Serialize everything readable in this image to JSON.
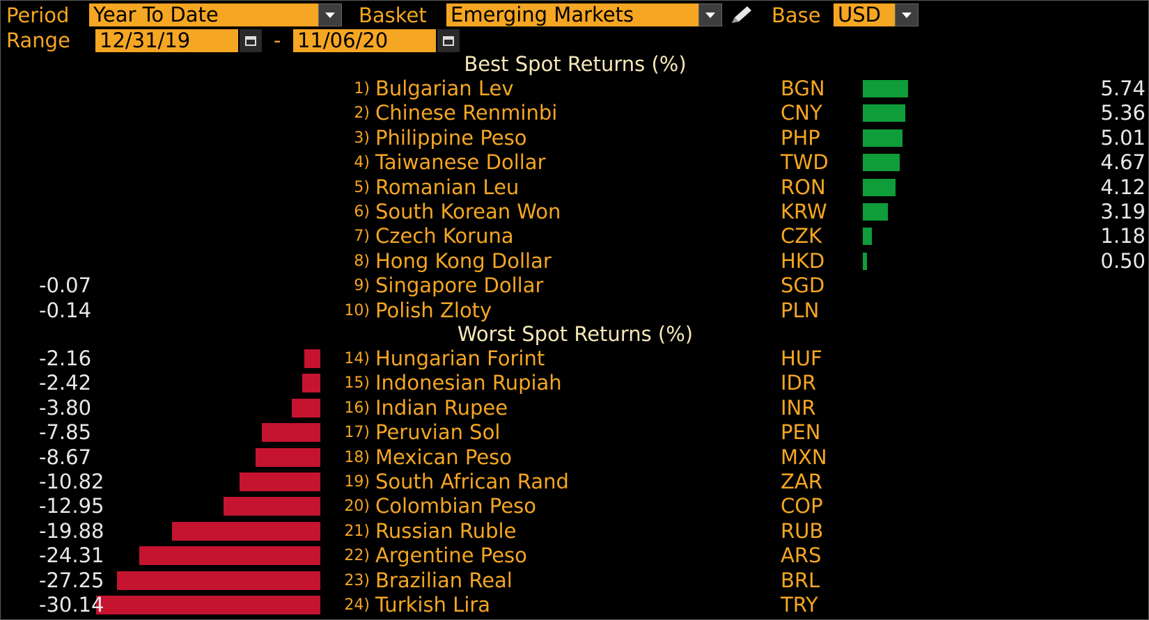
{
  "toolbar": {
    "period_label": "Period",
    "period_value": "Year To Date",
    "basket_label": "Basket",
    "basket_value": "Emerging Markets",
    "base_label": "Base",
    "base_value": "USD",
    "range_label": "Range",
    "range_start": "12/31/19",
    "range_sep": "-",
    "range_end": "11/06/20",
    "edit_icon": "pencil-icon",
    "calendar_icon": "calendar-icon"
  },
  "colors": {
    "accent": "#f5a623",
    "positive_bar": "#0f9d3a",
    "negative_bar": "#c4142f",
    "header_text": "#f5e8b8"
  },
  "best": {
    "title": "Best Spot Returns (%)",
    "rows": [
      {
        "rank": "1)",
        "name": "Bulgarian Lev",
        "code": "BGN",
        "value": "5.74"
      },
      {
        "rank": "2)",
        "name": "Chinese Renminbi",
        "code": "CNY",
        "value": "5.36"
      },
      {
        "rank": "3)",
        "name": "Philippine Peso",
        "code": "PHP",
        "value": "5.01"
      },
      {
        "rank": "4)",
        "name": "Taiwanese Dollar",
        "code": "TWD",
        "value": "4.67"
      },
      {
        "rank": "5)",
        "name": "Romanian Leu",
        "code": "RON",
        "value": "4.12"
      },
      {
        "rank": "6)",
        "name": "South Korean Won",
        "code": "KRW",
        "value": "3.19"
      },
      {
        "rank": "7)",
        "name": "Czech Koruna",
        "code": "CZK",
        "value": "1.18"
      },
      {
        "rank": "8)",
        "name": "Hong Kong Dollar",
        "code": "HKD",
        "value": "0.50"
      },
      {
        "rank": "9)",
        "name": "Singapore Dollar",
        "code": "SGD",
        "value": "-0.07"
      },
      {
        "rank": "10)",
        "name": "Polish Zloty",
        "code": "PLN",
        "value": "-0.14"
      }
    ]
  },
  "worst": {
    "title": "Worst Spot Returns (%)",
    "rows": [
      {
        "rank": "14)",
        "name": "Hungarian Forint",
        "code": "HUF",
        "value": "-2.16"
      },
      {
        "rank": "15)",
        "name": "Indonesian Rupiah",
        "code": "IDR",
        "value": "-2.42"
      },
      {
        "rank": "16)",
        "name": "Indian Rupee",
        "code": "INR",
        "value": "-3.80"
      },
      {
        "rank": "17)",
        "name": "Peruvian Sol",
        "code": "PEN",
        "value": "-7.85"
      },
      {
        "rank": "18)",
        "name": "Mexican Peso",
        "code": "MXN",
        "value": "-8.67"
      },
      {
        "rank": "19)",
        "name": "South African Rand",
        "code": "ZAR",
        "value": "-10.82"
      },
      {
        "rank": "20)",
        "name": "Colombian Peso",
        "code": "COP",
        "value": "-12.95"
      },
      {
        "rank": "21)",
        "name": "Russian Ruble",
        "code": "RUB",
        "value": "-19.88"
      },
      {
        "rank": "22)",
        "name": "Argentine Peso",
        "code": "ARS",
        "value": "-24.31"
      },
      {
        "rank": "23)",
        "name": "Brazilian Real",
        "code": "BRL",
        "value": "-27.25"
      },
      {
        "rank": "24)",
        "name": "Turkish Lira",
        "code": "TRY",
        "value": "-30.14"
      }
    ]
  }
}
